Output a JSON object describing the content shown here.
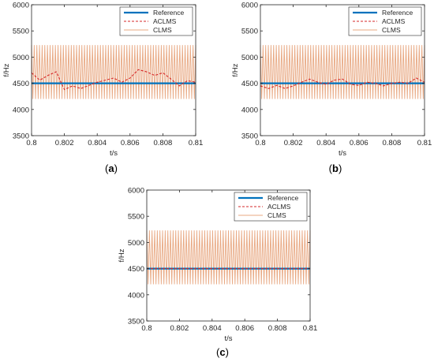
{
  "colors": {
    "reference": "#0072BD",
    "aclms": "#D62728",
    "clms": "#E8A882",
    "axis": "#262626"
  },
  "chart_data": [
    {
      "panel_label": "a",
      "type": "line",
      "xlabel": "t/s",
      "ylabel": "f/Hz",
      "xlim": [
        0.8,
        0.81
      ],
      "ylim": [
        3500,
        6000
      ],
      "xticks": [
        "0.8",
        "0.802",
        "0.804",
        "0.806",
        "0.808",
        "0.81"
      ],
      "yticks": [
        "3500",
        "4000",
        "4500",
        "5000",
        "5500",
        "6000"
      ],
      "legend": {
        "placement": "top-right",
        "entries": [
          "Reference",
          "ACLMS",
          "CLMS"
        ]
      },
      "series": [
        {
          "name": "Reference",
          "style": "solid-thick",
          "values": [
            4500,
            4500
          ]
        },
        {
          "name": "ACLMS",
          "style": "dashed",
          "x": [
            0.8,
            0.8005,
            0.801,
            0.8015,
            0.802,
            0.8025,
            0.803,
            0.8035,
            0.804,
            0.8045,
            0.805,
            0.8055,
            0.806,
            0.8065,
            0.807,
            0.8075,
            0.808,
            0.8085,
            0.809,
            0.8095,
            0.81
          ],
          "values": [
            4700,
            4560,
            4650,
            4720,
            4380,
            4450,
            4400,
            4460,
            4520,
            4560,
            4600,
            4520,
            4600,
            4760,
            4720,
            4650,
            4700,
            4580,
            4450,
            4550,
            4520
          ]
        },
        {
          "name": "CLMS",
          "style": "solid-thin",
          "center": 4710,
          "min": 4200,
          "max": 5230,
          "cycles": 62
        }
      ]
    },
    {
      "panel_label": "b",
      "type": "line",
      "xlabel": "t/s",
      "ylabel": "f/Hz",
      "xlim": [
        0.8,
        0.81
      ],
      "ylim": [
        3500,
        6000
      ],
      "xticks": [
        "0.8",
        "0.802",
        "0.804",
        "0.806",
        "0.808",
        "0.81"
      ],
      "yticks": [
        "3500",
        "4000",
        "4500",
        "5000",
        "5500",
        "6000"
      ],
      "legend": {
        "placement": "top-right",
        "entries": [
          "Reference",
          "ACLMS",
          "CLMS"
        ]
      },
      "series": [
        {
          "name": "Reference",
          "style": "solid-thick",
          "values": [
            4500,
            4500
          ]
        },
        {
          "name": "ACLMS",
          "style": "dashed",
          "x": [
            0.8,
            0.8005,
            0.801,
            0.8015,
            0.802,
            0.8025,
            0.803,
            0.8035,
            0.804,
            0.8045,
            0.805,
            0.8055,
            0.806,
            0.8065,
            0.807,
            0.8075,
            0.808,
            0.8085,
            0.809,
            0.8095,
            0.81
          ],
          "values": [
            4450,
            4400,
            4460,
            4400,
            4450,
            4520,
            4580,
            4520,
            4480,
            4560,
            4580,
            4480,
            4460,
            4520,
            4500,
            4450,
            4500,
            4520,
            4500,
            4600,
            4520
          ]
        },
        {
          "name": "CLMS",
          "style": "solid-thin",
          "center": 4710,
          "min": 4200,
          "max": 5230,
          "cycles": 62
        }
      ]
    },
    {
      "panel_label": "c",
      "type": "line",
      "xlabel": "t/s",
      "ylabel": "f/Hz",
      "xlim": [
        0.8,
        0.81
      ],
      "ylim": [
        3500,
        6000
      ],
      "xticks": [
        "0.8",
        "0.802",
        "0.804",
        "0.806",
        "0.808",
        "0.81"
      ],
      "yticks": [
        "3500",
        "4000",
        "4500",
        "5000",
        "5500",
        "6000"
      ],
      "legend": {
        "placement": "top-right",
        "entries": [
          "Reference",
          "ACLMS",
          "CLMS"
        ]
      },
      "series": [
        {
          "name": "Reference",
          "style": "solid-thick",
          "values": [
            4500,
            4500
          ]
        },
        {
          "name": "ACLMS",
          "style": "dashed",
          "values": [
            4500,
            4500
          ]
        },
        {
          "name": "CLMS",
          "style": "solid-thin",
          "center": 4710,
          "min": 4200,
          "max": 5230,
          "cycles": 62
        }
      ]
    }
  ]
}
